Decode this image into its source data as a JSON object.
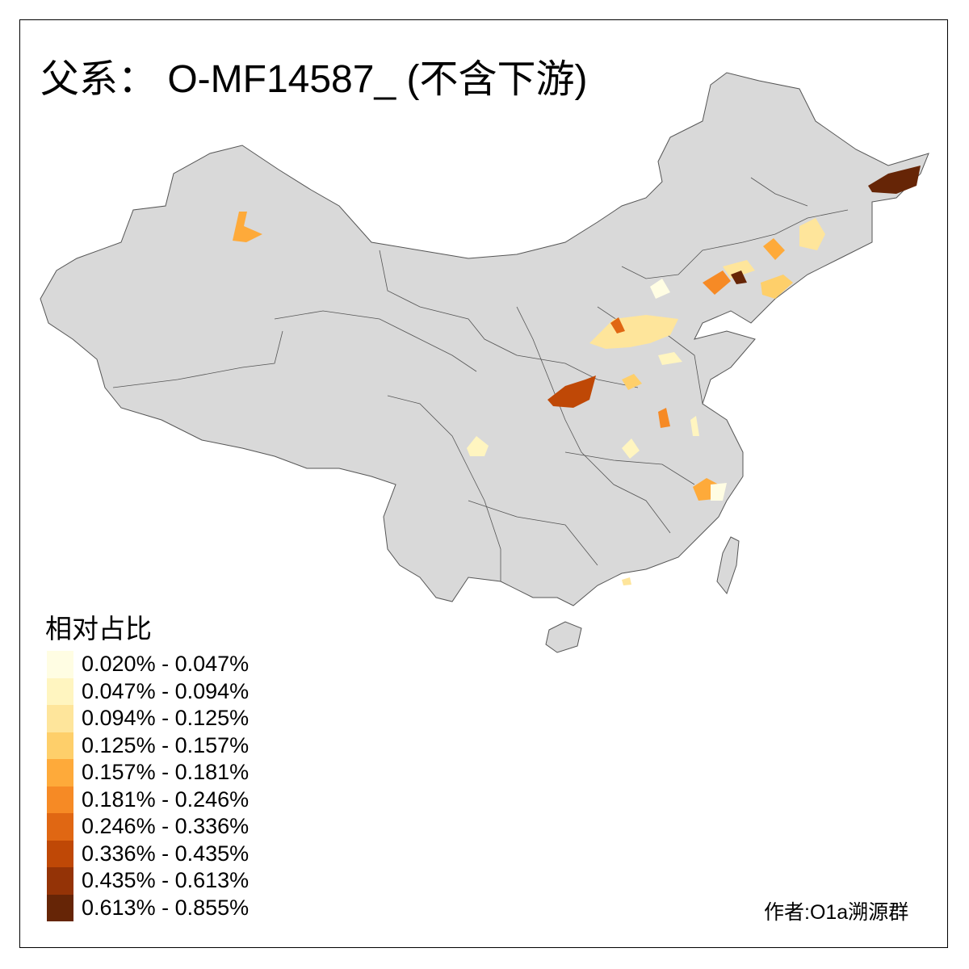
{
  "title": "父系： O-MF14587_ (不含下游)",
  "legend": {
    "title": "相对占比",
    "items": [
      {
        "label": "0.020% - 0.047%",
        "color": "#FFFDE3"
      },
      {
        "label": "0.047% - 0.094%",
        "color": "#FFF5C0"
      },
      {
        "label": "0.094% - 0.125%",
        "color": "#FEE59B"
      },
      {
        "label": "0.125% - 0.157%",
        "color": "#FECF6A"
      },
      {
        "label": "0.157% - 0.181%",
        "color": "#FEAA3A"
      },
      {
        "label": "0.181% - 0.246%",
        "color": "#F68A25"
      },
      {
        "label": "0.246% - 0.336%",
        "color": "#E06713"
      },
      {
        "label": "0.336% - 0.435%",
        "color": "#BF4806"
      },
      {
        "label": "0.435% - 0.613%",
        "color": "#943306"
      },
      {
        "label": "0.613% - 0.855%",
        "color": "#662506"
      }
    ]
  },
  "map": {
    "base_color": "#D9D9D9",
    "border_color": "#555555"
  },
  "credit": "作者:O1a溯源群"
}
